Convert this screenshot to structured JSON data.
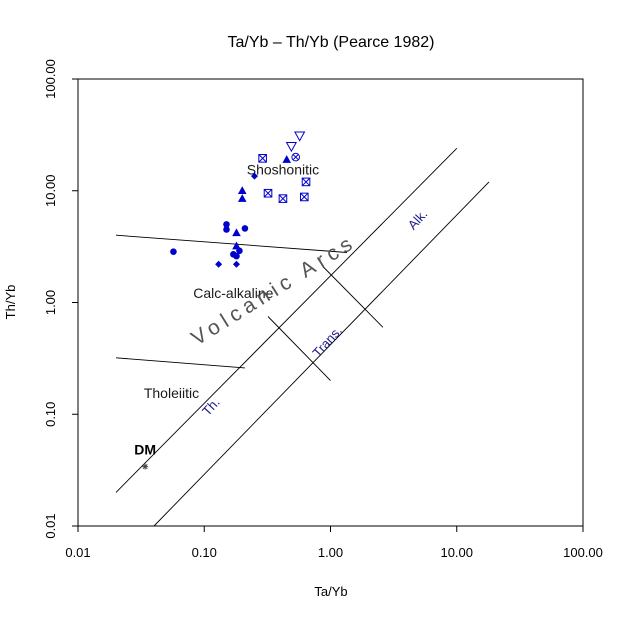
{
  "chart_data": {
    "type": "scatter",
    "title": "Ta/Yb – Th/Yb (Pearce 1982)",
    "xlabel": "Ta/Yb",
    "ylabel": "Th/Yb",
    "x_scale": "log",
    "y_scale": "log",
    "xlim": [
      0.01,
      100
    ],
    "ylim": [
      0.01,
      100
    ],
    "x_ticks": [
      0.01,
      0.1,
      1,
      10,
      100
    ],
    "x_tick_labels": [
      "0.01",
      "0.10",
      "1.00",
      "10.00",
      "100.00"
    ],
    "y_ticks": [
      0.01,
      0.1,
      1,
      10,
      100
    ],
    "y_tick_labels": [
      "0.01",
      "0.10",
      "1.00",
      "10.00",
      "100.00"
    ],
    "grid": false,
    "legend": "none",
    "point_color": "#0000cc",
    "field_labels": [
      {
        "text": "Shoshonitic",
        "x": 0.42,
        "y": 14
      },
      {
        "text": "Calc-alkaline",
        "x": 0.17,
        "y": 1.1
      },
      {
        "text": "Tholeiitic",
        "x": 0.055,
        "y": 0.14
      }
    ],
    "arc_label": {
      "text": "Volcanic Arcs",
      "x": 0.38,
      "y": 1.15,
      "angle": -32
    },
    "mantle_labels": [
      {
        "text": "Alk.",
        "x": 5.2,
        "y": 5.2,
        "angle": -48
      },
      {
        "text": "Trans.",
        "x": 1.0,
        "y": 0.42,
        "angle": -48
      },
      {
        "text": "Th.",
        "x": 0.12,
        "y": 0.11,
        "angle": -48
      }
    ],
    "reference_point": {
      "text": "DM",
      "x": 0.034,
      "y": 0.034
    },
    "boundaries": [
      {
        "name": "arc-upper-edge",
        "points": [
          [
            0.02,
            0.02
          ],
          [
            10,
            24
          ]
        ]
      },
      {
        "name": "mantle-array-upper",
        "points": [
          [
            0.04,
            0.01
          ],
          [
            18,
            12
          ]
        ]
      },
      {
        "name": "shoshonitic-calc-alkaline",
        "points": [
          [
            0.02,
            4.0
          ],
          [
            1.35,
            2.8
          ]
        ]
      },
      {
        "name": "calc-alkaline-tholeiitic",
        "points": [
          [
            0.02,
            0.32
          ],
          [
            0.21,
            0.26
          ]
        ]
      },
      {
        "name": "alk-trans-divide",
        "points": [
          [
            0.87,
            2.1
          ],
          [
            2.6,
            0.6
          ]
        ]
      },
      {
        "name": "trans-th-divide",
        "points": [
          [
            0.32,
            0.75
          ],
          [
            1.0,
            0.2
          ]
        ]
      }
    ],
    "series": [
      {
        "marker": "filled-circle",
        "points": [
          [
            0.057,
            2.85
          ],
          [
            0.15,
            5.0
          ],
          [
            0.15,
            4.5
          ],
          [
            0.21,
            4.6
          ],
          [
            0.17,
            2.7
          ],
          [
            0.19,
            2.9
          ],
          [
            0.18,
            2.6
          ]
        ]
      },
      {
        "marker": "filled-triangle",
        "points": [
          [
            0.2,
            10.0
          ],
          [
            0.2,
            8.5
          ],
          [
            0.45,
            19.0
          ],
          [
            0.18,
            4.2
          ],
          [
            0.18,
            3.2
          ]
        ]
      },
      {
        "marker": "filled-diamond",
        "points": [
          [
            0.25,
            13.5
          ],
          [
            0.13,
            2.2
          ],
          [
            0.18,
            2.2
          ]
        ]
      },
      {
        "marker": "boxed-x",
        "points": [
          [
            0.29,
            19.5
          ],
          [
            0.32,
            9.5
          ],
          [
            0.42,
            8.5
          ],
          [
            0.62,
            8.8
          ],
          [
            0.64,
            12.0
          ]
        ]
      },
      {
        "marker": "open-triangle-down",
        "points": [
          [
            0.57,
            31.0
          ],
          [
            0.49,
            25.0
          ]
        ]
      },
      {
        "marker": "circle-x",
        "points": [
          [
            0.53,
            20.0
          ]
        ]
      }
    ]
  }
}
